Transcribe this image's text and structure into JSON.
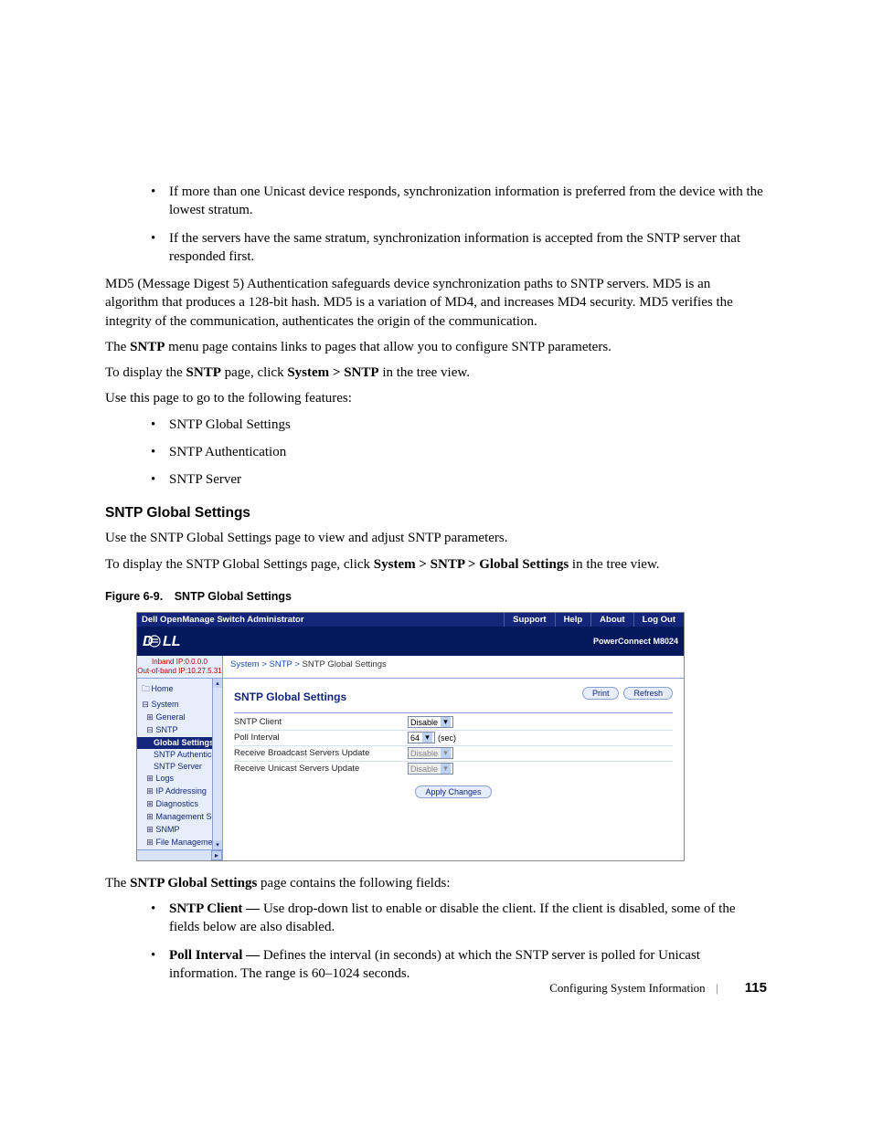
{
  "bullets_top": [
    "If more than one Unicast device responds, synchronization information is preferred from the device with the lowest stratum.",
    "If the servers have the same stratum, synchronization information is accepted from the SNTP server that responded first."
  ],
  "para1": "MD5 (Message Digest 5) Authentication safeguards device synchronization paths to SNTP servers. MD5 is an algorithm that produces a 128-bit hash. MD5 is a variation of MD4, and increases MD4 security. MD5 verifies the integrity of the communication, authenticates the origin of the communication.",
  "para2_pre": "The ",
  "para2_b": "SNTP",
  "para2_post": " menu page contains links to pages that allow you to configure SNTP parameters.",
  "para3_pre": "To display the ",
  "para3_b1": "SNTP",
  "para3_mid": " page, click ",
  "para3_b2": "System > SNTP",
  "para3_post": " in the tree view.",
  "para4": "Use this page to go to the following features:",
  "feature_list": [
    "SNTP Global Settings",
    "SNTP Authentication",
    "SNTP Server"
  ],
  "section_title": "SNTP Global Settings",
  "sec_p1": "Use the SNTP Global Settings page to view and adjust SNTP parameters.",
  "sec_p2_pre": "To display the SNTP Global Settings page, click ",
  "sec_p2_b": "System > SNTP > Global Settings",
  "sec_p2_post": " in the tree view.",
  "fig_caption": "Figure 6-9. SNTP Global Settings",
  "post_p1_pre": "The ",
  "post_p1_b": "SNTP Global Settings",
  "post_p1_post": " page contains the following fields:",
  "field_list": [
    {
      "label": "SNTP Client — ",
      "desc": "Use drop-down list to enable or disable the client. If the client is disabled, some of the fields below are also disabled."
    },
    {
      "label": "Poll Interval — ",
      "desc": "Defines the interval (in seconds) at which the SNTP server is polled for Unicast information. The range is 60–1024 seconds."
    }
  ],
  "footer_text": "Configuring System Information",
  "page_number": "115",
  "shot": {
    "app_title": "Dell OpenManage Switch Administrator",
    "menu": [
      "Support",
      "Help",
      "About",
      "Log Out"
    ],
    "product": "PowerConnect M8024",
    "ip_inband": "Inband IP:0.0.0.0",
    "ip_oob": "Out-of-band IP:10.27.5.31",
    "crumb_links": [
      "System",
      "SNTP"
    ],
    "crumb_current": "SNTP Global Settings",
    "content_title": "SNTP Global Settings",
    "print": "Print",
    "refresh": "Refresh",
    "rows": [
      {
        "label": "SNTP Client",
        "value": "Disable",
        "disabled": false,
        "suffix": ""
      },
      {
        "label": "Poll Interval",
        "value": "64",
        "disabled": false,
        "suffix": "(sec)"
      },
      {
        "label": "Receive Broadcast Servers Update",
        "value": "Disable",
        "disabled": true,
        "suffix": ""
      },
      {
        "label": "Receive Unicast Servers Update",
        "value": "Disable",
        "disabled": true,
        "suffix": ""
      }
    ],
    "apply": "Apply Changes",
    "tree": [
      {
        "t": "Home",
        "l": 1,
        "pre": "🗀",
        "sel": false
      },
      {
        "t": "System",
        "l": 1,
        "pre": "⊟",
        "sel": false
      },
      {
        "t": "General",
        "l": 2,
        "pre": "⊞",
        "sel": false
      },
      {
        "t": "SNTP",
        "l": 2,
        "pre": "⊟",
        "sel": false
      },
      {
        "t": "Global Settings",
        "l": 3,
        "pre": "",
        "sel": true
      },
      {
        "t": "SNTP Authentica",
        "l": 3,
        "pre": "",
        "sel": false
      },
      {
        "t": "SNTP Server",
        "l": 3,
        "pre": "",
        "sel": false
      },
      {
        "t": "Logs",
        "l": 2,
        "pre": "⊞",
        "sel": false
      },
      {
        "t": "IP Addressing",
        "l": 2,
        "pre": "⊞",
        "sel": false
      },
      {
        "t": "Diagnostics",
        "l": 2,
        "pre": "⊞",
        "sel": false
      },
      {
        "t": "Management Secur",
        "l": 2,
        "pre": "⊞",
        "sel": false
      },
      {
        "t": "SNMP",
        "l": 2,
        "pre": "⊞",
        "sel": false
      },
      {
        "t": "File Management",
        "l": 2,
        "pre": "⊞",
        "sel": false
      }
    ]
  }
}
